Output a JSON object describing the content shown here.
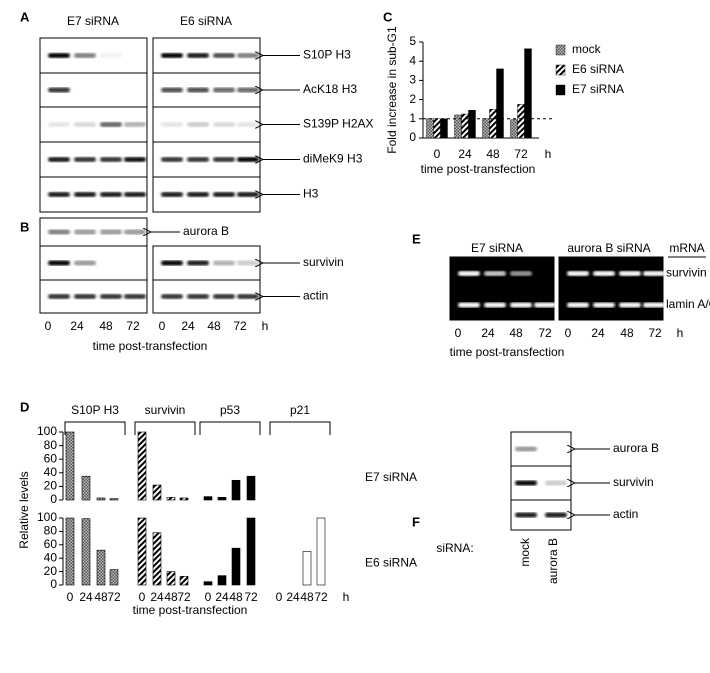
{
  "blot_A": {
    "label": "A",
    "columns": [
      "E7 siRNA",
      "E6 siRNA"
    ],
    "rows": [
      "S10P H3",
      "AcK18  H3",
      "S139P H2AX",
      "diMeK9 H3",
      "H3"
    ]
  },
  "blot_B": {
    "label": "B",
    "left_rows": [
      "aurora B",
      "survivin",
      "actin"
    ],
    "right_rows": [
      "survivin",
      "actin"
    ],
    "times": [
      "0",
      "24",
      "48",
      "72"
    ],
    "unit": "h",
    "xlabel": "time post-transfection"
  },
  "gel_E": {
    "label": "E",
    "columns": [
      "E7 siRNA",
      "aurora B siRNA"
    ],
    "header": "mRNA",
    "rows": [
      "survivin",
      "lamin A/C"
    ],
    "times": [
      "0",
      "24",
      "48",
      "72"
    ],
    "unit": "h",
    "xlabel": "time post-transfection"
  },
  "blot_F": {
    "label": "F",
    "rows": [
      "aurora B",
      "survivin",
      "actin"
    ],
    "xlabel": "siRNA:",
    "lanes": [
      "mock",
      "aurora B"
    ]
  },
  "chart_data": [
    {
      "type": "bar",
      "label": "C",
      "ylabel": "Fold  increase  in sub-G1",
      "xlabel": "time post-transfection",
      "unit": "h",
      "categories": [
        "0",
        "24",
        "48",
        "72"
      ],
      "ylim": [
        0,
        5
      ],
      "yticks": [
        0,
        1,
        2,
        3,
        4,
        5
      ],
      "reference_line": 1,
      "series": [
        {
          "name": "mock",
          "pattern": "dots",
          "values": [
            1,
            1.2,
            1,
            0.95
          ]
        },
        {
          "name": "E6 siRNA",
          "pattern": "hatch",
          "values": [
            1,
            1.25,
            1.5,
            1.75
          ]
        },
        {
          "name": "E7 siRNA",
          "pattern": "solid",
          "values": [
            1,
            1.45,
            3.6,
            4.65
          ]
        }
      ]
    },
    {
      "type": "panel_bar",
      "label": "D",
      "ylabel": "Relative levels",
      "xlabel": "time post-transfection",
      "unit": "h",
      "categories": [
        "0",
        "24",
        "48",
        "72"
      ],
      "ylim": [
        0,
        100
      ],
      "yticks": [
        0,
        20,
        40,
        60,
        80,
        100
      ],
      "groups": [
        {
          "name": "S10P H3",
          "pattern": "dots"
        },
        {
          "name": "survivin",
          "pattern": "hatch"
        },
        {
          "name": "p53",
          "pattern": "solid"
        },
        {
          "name": "p21",
          "pattern": "open"
        }
      ],
      "rows": [
        {
          "name": "E7 siRNA",
          "values": [
            [
              100,
              35,
              3,
              2
            ],
            [
              100,
              22,
              4,
              3
            ],
            [
              5,
              4,
              29,
              35
            ],
            [
              0,
              0,
              0,
              0
            ]
          ]
        },
        {
          "name": "E6 siRNA",
          "values": [
            [
              100,
              99,
              52,
              23
            ],
            [
              100,
              78,
              20,
              13
            ],
            [
              5,
              14,
              55,
              100
            ],
            [
              0,
              0,
              50,
              100
            ]
          ]
        }
      ]
    }
  ]
}
